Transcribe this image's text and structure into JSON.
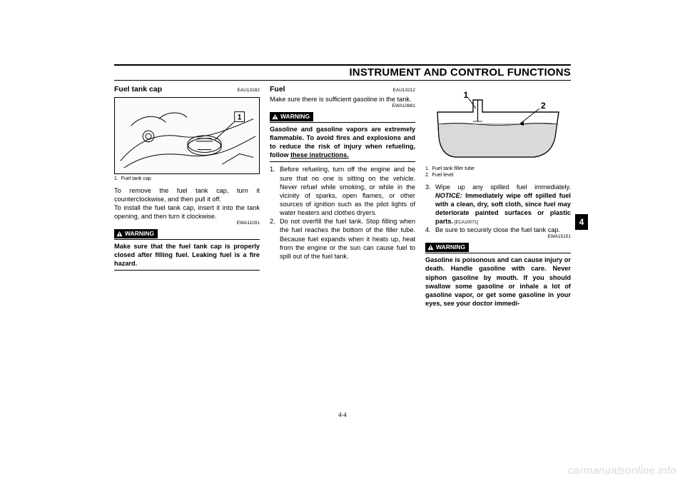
{
  "header": {
    "title": "INSTRUMENT AND CONTROL FUNCTIONS"
  },
  "side_tab": "4",
  "page_number": "4-4",
  "watermark": "carmanualsonline.info",
  "col1": {
    "ref1": "EAU13182",
    "title": "Fuel tank cap",
    "fig_label_num": "1",
    "fig_caption": "1.  Fuel tank cap",
    "p1": "To remove the fuel tank cap, turn it counterclockwise, and then pull it off.",
    "p2": "To install the fuel tank cap, insert it into the tank opening, and then turn it clockwise.",
    "warn_ref": "EWA11091",
    "warn_label": "WARNING",
    "warn_text": "Make sure that the fuel tank cap is properly closed after filling fuel. Leaking fuel is a fire hazard."
  },
  "col2": {
    "ref1": "EAU13212",
    "title": "Fuel",
    "intro": "Make sure there is sufficient gasoline in the tank.",
    "warn_ref": "EWA10881",
    "warn_label": "WARNING",
    "warn_text": "Gasoline and gasoline vapors are extremely flammable. To avoid fires and explosions and to reduce the risk of injury when refueling, follow these instructions.",
    "li1": "Before refueling, turn off the engine and be sure that no one is sitting on the vehicle. Never refuel while smoking, or while in the vicinity of sparks, open flames, or other sources of ignition such as the pilot lights of water heaters and clothes dryers.",
    "li2": "Do not overfill the fuel tank. Stop filling when the fuel reaches the bottom of the filler tube. Because fuel expands when it heats up, heat from the engine or the sun can cause fuel to spill out of the fuel tank."
  },
  "col3": {
    "fig_label_1": "1",
    "fig_label_2": "2",
    "fig_caption1": "1.  Fuel tank filler tube",
    "fig_caption2": "2.  Fuel level",
    "li3_a": "Wipe up any spilled fuel immediately. ",
    "li3_notice": "NOTICE:",
    "li3_b": " Immediately wipe off spilled fuel with a clean, dry, soft cloth, since fuel may deteriorate painted surfaces or plastic parts.",
    "li3_ref": " [ECA10071]",
    "li4": "Be sure to securely close the fuel tank cap.",
    "warn_ref": "EWA15151",
    "warn_label": "WARNING",
    "warn_text": "Gasoline is poisonous and can cause injury or death. Handle gasoline with care. Never siphon gasoline by mouth. If you should swallow some gasoline or inhale a lot of gasoline vapor, or get some gasoline in your eyes, see your doctor immedi-"
  }
}
